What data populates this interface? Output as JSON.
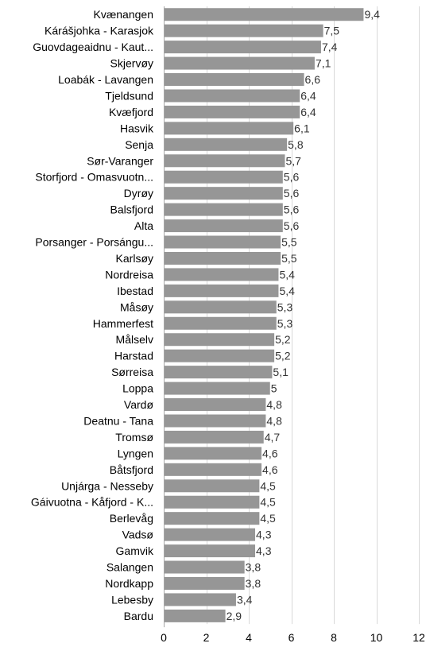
{
  "chart_data": {
    "type": "bar",
    "orientation": "horizontal",
    "categories": [
      "Kvænangen",
      "Kárášjohka - Karasjok",
      "Guovdageaidnu - Kaut...",
      "Skjervøy",
      "Loabák - Lavangen",
      "Tjeldsund",
      "Kvæfjord",
      "Hasvik",
      "Senja",
      "Sør-Varanger",
      "Storfjord - Omasvuotn...",
      "Dyrøy",
      "Balsfjord",
      "Alta",
      "Porsanger - Porsángu...",
      "Karlsøy",
      "Nordreisa",
      "Ibestad",
      "Måsøy",
      "Hammerfest",
      "Målselv",
      "Harstad",
      "Sørreisa",
      "Loppa",
      "Vardø",
      "Deatnu - Tana",
      "Tromsø",
      "Lyngen",
      "Båtsfjord",
      "Unjárga - Nesseby",
      "Gáivuotna - Kåfjord - K...",
      "Berlevåg",
      "Vadsø",
      "Gamvik",
      "Salangen",
      "Nordkapp",
      "Lebesby",
      "Bardu"
    ],
    "values": [
      9.4,
      7.5,
      7.4,
      7.1,
      6.6,
      6.4,
      6.4,
      6.1,
      5.8,
      5.7,
      5.6,
      5.6,
      5.6,
      5.6,
      5.5,
      5.5,
      5.4,
      5.4,
      5.3,
      5.3,
      5.2,
      5.2,
      5.1,
      5,
      4.8,
      4.8,
      4.7,
      4.6,
      4.6,
      4.5,
      4.5,
      4.5,
      4.3,
      4.3,
      3.8,
      3.8,
      3.4,
      2.9
    ],
    "value_labels": [
      "9,4",
      "7,5",
      "7,4",
      "7,1",
      "6,6",
      "6,4",
      "6,4",
      "6,1",
      "5,8",
      "5,7",
      "5,6",
      "5,6",
      "5,6",
      "5,6",
      "5,5",
      "5,5",
      "5,4",
      "5,4",
      "5,3",
      "5,3",
      "5,2",
      "5,2",
      "5,1",
      "5",
      "4,8",
      "4,8",
      "4,7",
      "4,6",
      "4,6",
      "4,5",
      "4,5",
      "4,5",
      "4,3",
      "4,3",
      "3,8",
      "3,8",
      "3,4",
      "2,9"
    ],
    "xlim": [
      0,
      12
    ],
    "xticks": [
      0,
      2,
      4,
      6,
      8,
      10,
      12
    ],
    "xlabel": "",
    "ylabel": "",
    "title": "",
    "grid": true,
    "legend": "none",
    "bar_color": "#969696"
  }
}
